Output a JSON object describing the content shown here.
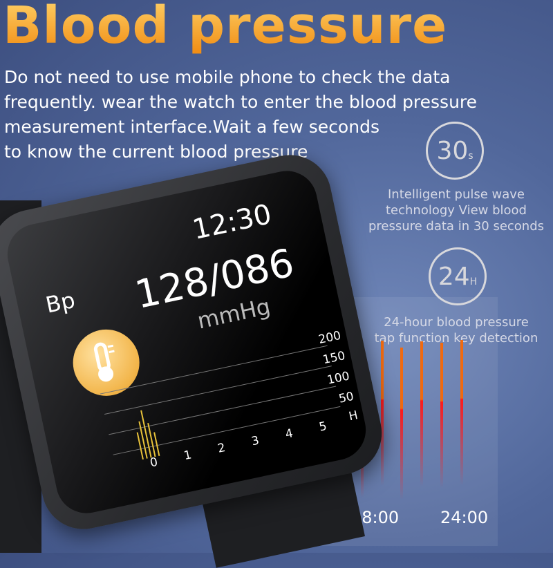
{
  "title": "Blood pressure",
  "description": [
    "Do not need to use mobile phone to check the data",
    "frequently. wear the watch to enter the blood pressure",
    "measurement interface.Wait a few seconds",
    "to know the current blood pressure"
  ],
  "badges": [
    {
      "number": "30",
      "unit": "s",
      "caption": [
        "Intelligent pulse wave",
        "technology View blood",
        "pressure data in 30 seconds"
      ]
    },
    {
      "number": "24",
      "unit": "H",
      "caption": [
        "24-hour blood pressure",
        "tap function key detection"
      ]
    }
  ],
  "chart_labels": [
    "18:00",
    "24:00"
  ],
  "watch": {
    "time": "12:30",
    "label": "Bp",
    "reading": "128/086",
    "unit": "mmHg",
    "y_ticks": [
      "200",
      "150",
      "100",
      "50",
      "H"
    ],
    "x_ticks": [
      "0",
      "1",
      "2",
      "3",
      "4",
      "5"
    ]
  },
  "colors": {
    "title": "#f3a21e",
    "bar_top": "#f06a10",
    "bar_bottom": "#ff1a1a",
    "background": "#51679b"
  }
}
